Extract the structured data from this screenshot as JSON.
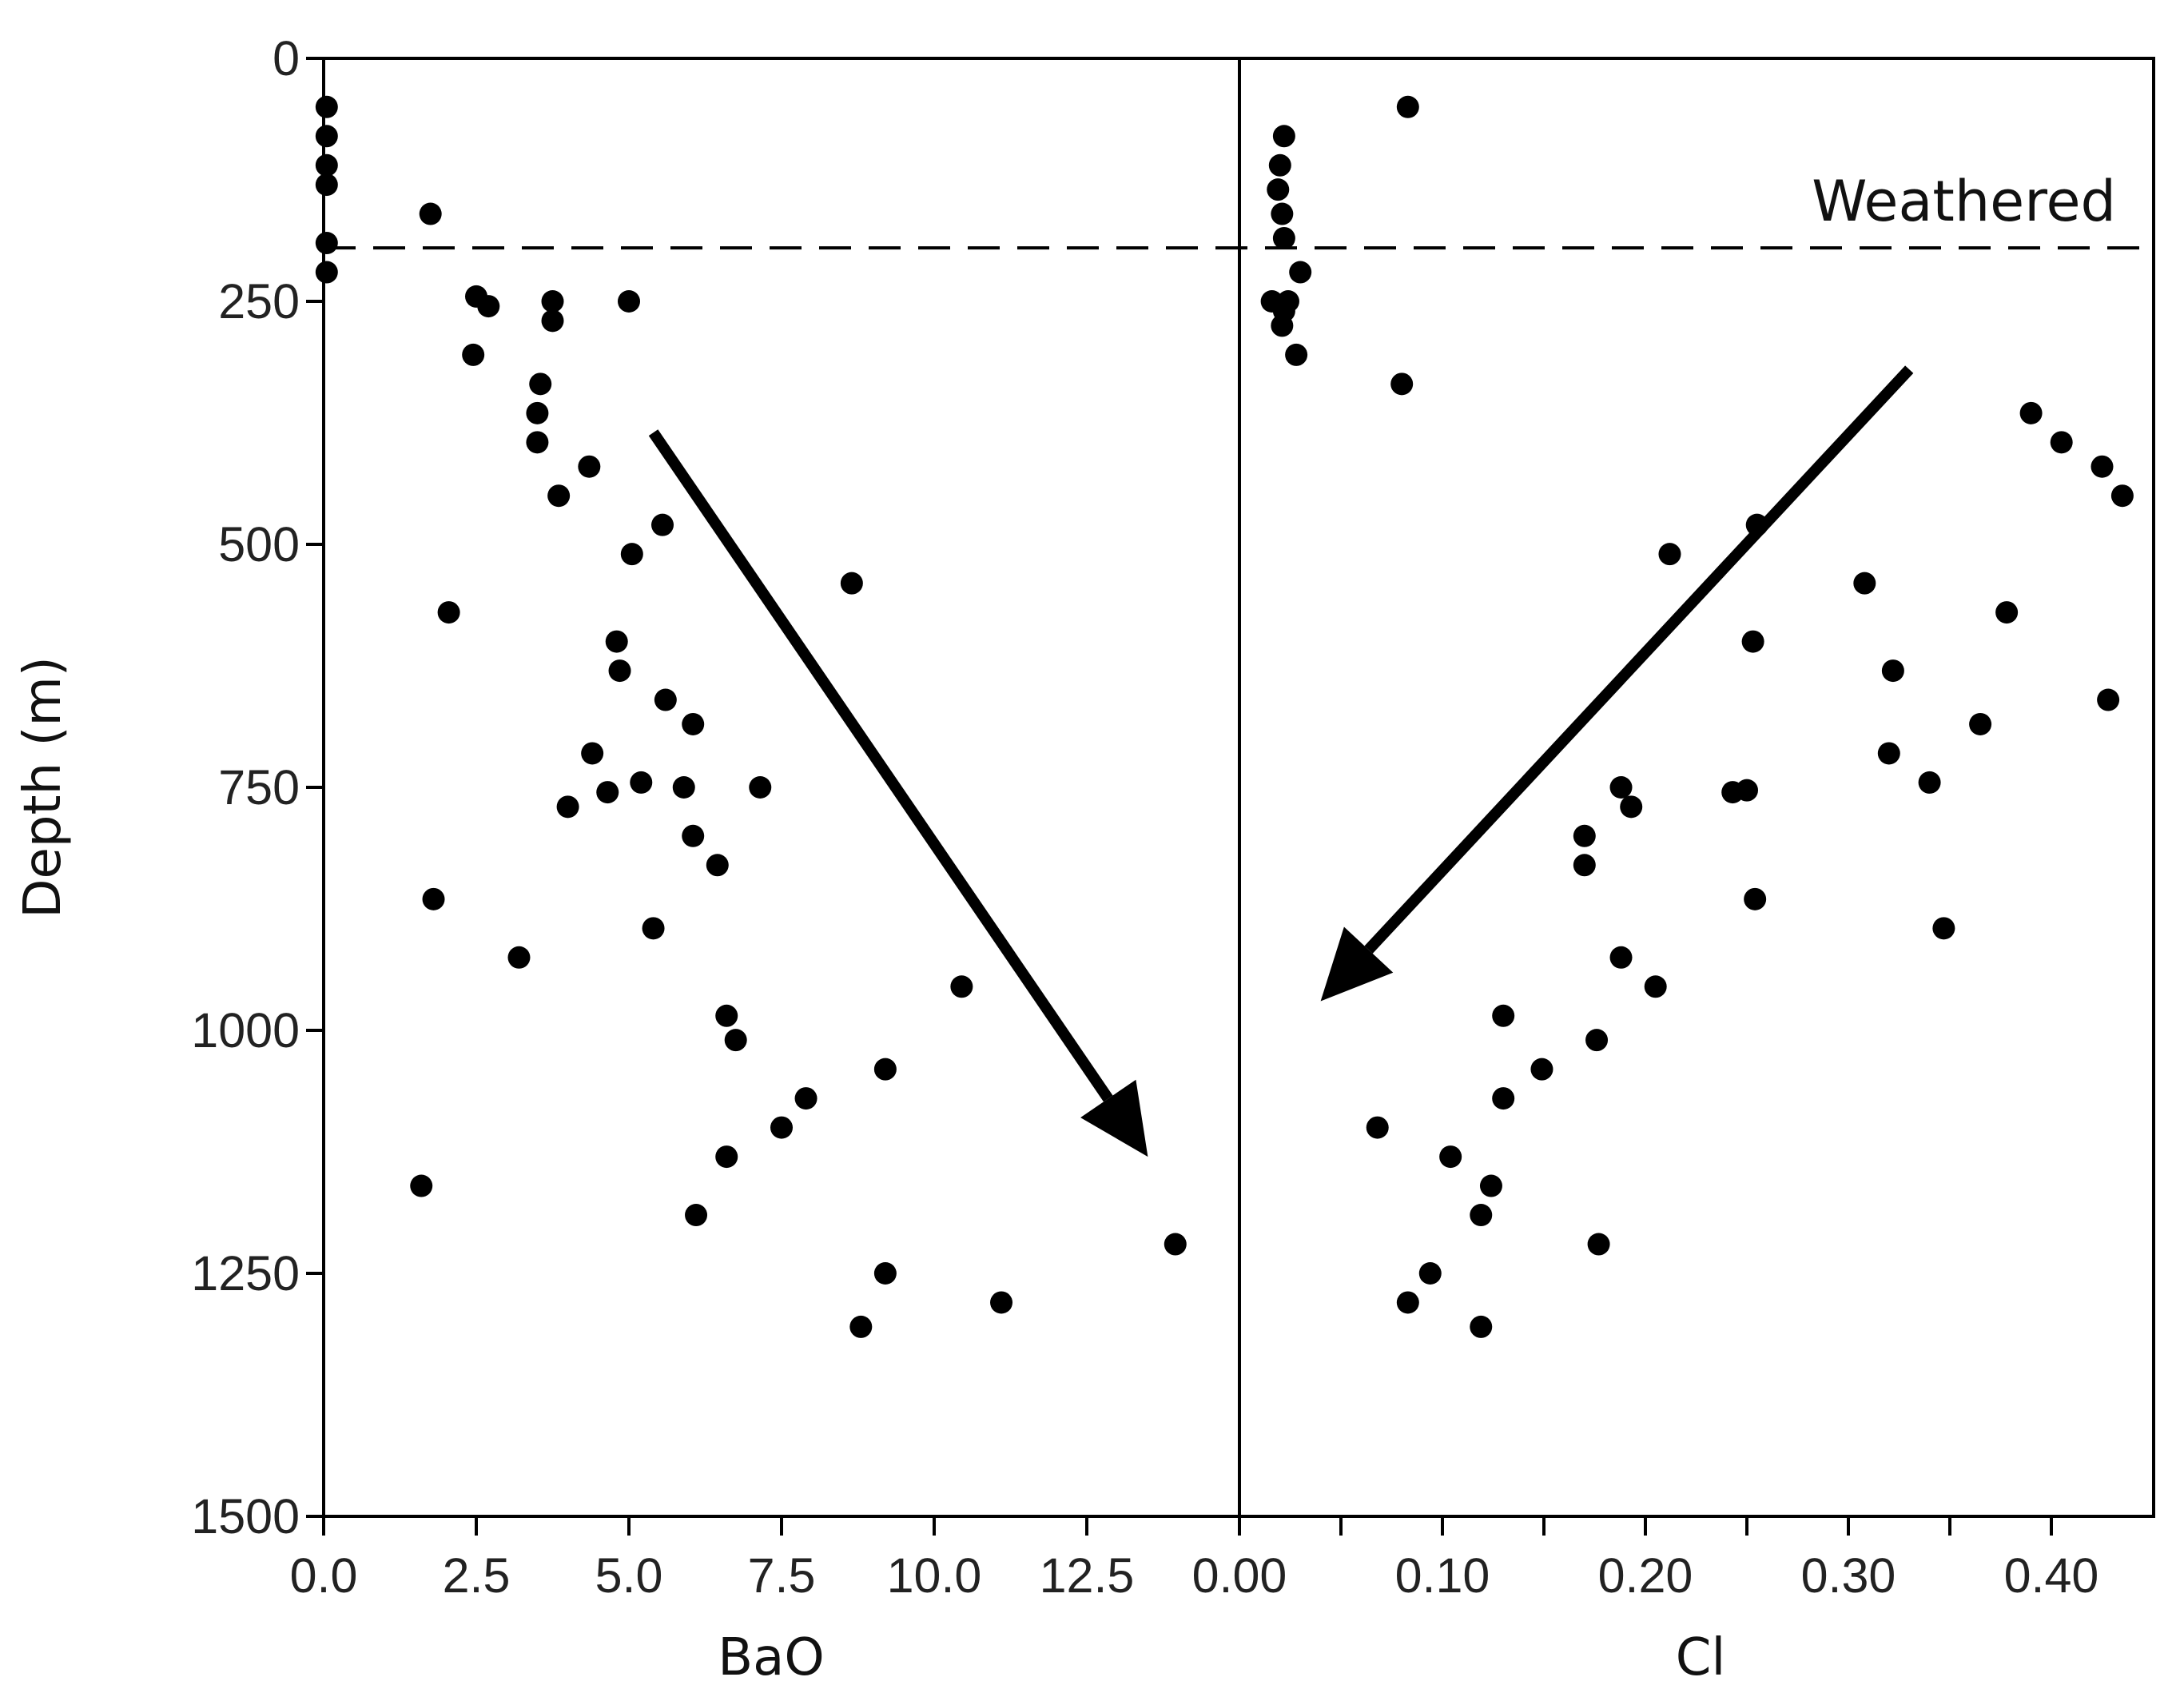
{
  "chart_data": {
    "type": "scatter",
    "ylabel": "Depth (m)",
    "ylim": [
      0,
      1500
    ],
    "y_inverted": true,
    "y_ticks": [
      "0",
      "250",
      "500",
      "750",
      "1000",
      "1250",
      "1500"
    ],
    "y_tick_values": [
      0,
      250,
      500,
      750,
      1000,
      1250,
      1500
    ],
    "annotation": "Weathered",
    "weathered_depth": 195,
    "grid": false,
    "colors": {
      "points": "#000000",
      "axes": "#000000",
      "background": "#ffffff"
    },
    "panels": [
      {
        "xlabel": "BaO",
        "xlim": [
          0,
          15
        ],
        "x_ticks": [
          "0.0",
          "2.5",
          "5.0",
          "7.5",
          "10.0",
          "12.5"
        ],
        "x_tick_values": [
          0,
          2.5,
          5.0,
          7.5,
          10.0,
          12.5
        ],
        "trend_arrow": {
          "from": [
            5.4,
            385
          ],
          "to": [
            13.5,
            1130
          ]
        },
        "points": [
          [
            0.05,
            50
          ],
          [
            0.05,
            80
          ],
          [
            0.05,
            110
          ],
          [
            0.05,
            130
          ],
          [
            0.05,
            190
          ],
          [
            0.05,
            220
          ],
          [
            1.75,
            160
          ],
          [
            2.5,
            245
          ],
          [
            2.7,
            255
          ],
          [
            3.75,
            250
          ],
          [
            3.75,
            270
          ],
          [
            5.0,
            250
          ],
          [
            2.45,
            305
          ],
          [
            3.55,
            335
          ],
          [
            3.5,
            365
          ],
          [
            3.5,
            395
          ],
          [
            4.35,
            420
          ],
          [
            3.85,
            450
          ],
          [
            5.55,
            480
          ],
          [
            5.05,
            510
          ],
          [
            8.65,
            540
          ],
          [
            2.05,
            570
          ],
          [
            4.8,
            600
          ],
          [
            4.85,
            630
          ],
          [
            5.6,
            660
          ],
          [
            6.05,
            685
          ],
          [
            4.4,
            715
          ],
          [
            5.2,
            745
          ],
          [
            4.65,
            755
          ],
          [
            5.9,
            750
          ],
          [
            7.15,
            750
          ],
          [
            4.0,
            770
          ],
          [
            6.05,
            800
          ],
          [
            6.45,
            830
          ],
          [
            1.8,
            865
          ],
          [
            5.4,
            895
          ],
          [
            3.2,
            925
          ],
          [
            10.45,
            955
          ],
          [
            6.6,
            985
          ],
          [
            6.75,
            1010
          ],
          [
            9.2,
            1040
          ],
          [
            7.9,
            1070
          ],
          [
            7.5,
            1100
          ],
          [
            6.6,
            1130
          ],
          [
            1.6,
            1160
          ],
          [
            6.1,
            1190
          ],
          [
            13.95,
            1220
          ],
          [
            9.2,
            1250
          ],
          [
            11.1,
            1280
          ],
          [
            8.8,
            1305
          ]
        ]
      },
      {
        "xlabel": "Cl",
        "xlim": [
          0,
          0.45
        ],
        "x_ticks": [
          "0.00",
          "0.10",
          "0.20",
          "0.30",
          "0.40"
        ],
        "x_tick_values": [
          0,
          0.1,
          0.2,
          0.3,
          0.4
        ],
        "x_minor_tick_values": [
          0.05,
          0.15,
          0.25,
          0.35
        ],
        "trend_arrow": {
          "from": [
            0.33,
            320
          ],
          "to": [
            0.04,
            970
          ]
        },
        "points": [
          [
            0.083,
            50
          ],
          [
            0.022,
            80
          ],
          [
            0.02,
            110
          ],
          [
            0.019,
            135
          ],
          [
            0.021,
            160
          ],
          [
            0.022,
            185
          ],
          [
            0.03,
            220
          ],
          [
            0.016,
            250
          ],
          [
            0.024,
            250
          ],
          [
            0.022,
            260
          ],
          [
            0.021,
            275
          ],
          [
            0.028,
            305
          ],
          [
            0.08,
            335
          ],
          [
            0.39,
            365
          ],
          [
            0.405,
            395
          ],
          [
            0.425,
            420
          ],
          [
            0.435,
            450
          ],
          [
            0.255,
            480
          ],
          [
            0.212,
            510
          ],
          [
            0.308,
            540
          ],
          [
            0.378,
            570
          ],
          [
            0.253,
            600
          ],
          [
            0.322,
            630
          ],
          [
            0.428,
            660
          ],
          [
            0.365,
            685
          ],
          [
            0.32,
            715
          ],
          [
            0.34,
            745
          ],
          [
            0.188,
            750
          ],
          [
            0.243,
            755
          ],
          [
            0.25,
            753
          ],
          [
            0.193,
            770
          ],
          [
            0.17,
            800
          ],
          [
            0.17,
            830
          ],
          [
            0.254,
            865
          ],
          [
            0.347,
            895
          ],
          [
            0.188,
            925
          ],
          [
            0.205,
            955
          ],
          [
            0.13,
            985
          ],
          [
            0.176,
            1010
          ],
          [
            0.149,
            1040
          ],
          [
            0.13,
            1070
          ],
          [
            0.068,
            1100
          ],
          [
            0.104,
            1130
          ],
          [
            0.124,
            1160
          ],
          [
            0.119,
            1190
          ],
          [
            0.177,
            1220
          ],
          [
            0.094,
            1250
          ],
          [
            0.083,
            1280
          ],
          [
            0.119,
            1305
          ]
        ]
      }
    ]
  }
}
